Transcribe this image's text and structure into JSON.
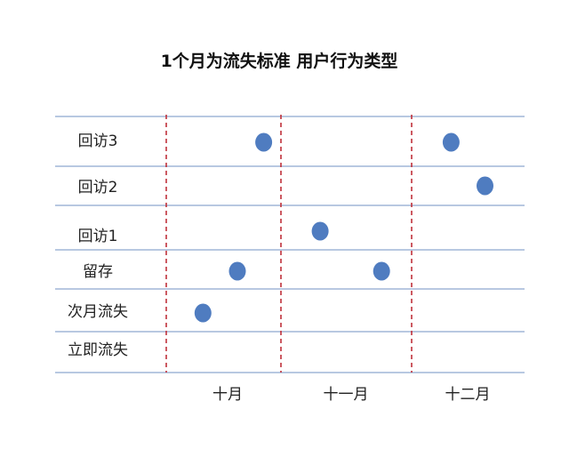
{
  "chart_data": {
    "type": "scatter",
    "title": "1个月为流失标准 用户行为类型",
    "categories": [
      "回访3",
      "回访2",
      "回访1",
      "留存",
      "次月流失",
      "立即流失"
    ],
    "months": [
      "十月",
      "十一月",
      "十二月"
    ],
    "points": [
      {
        "category": "回访3",
        "month": "十月",
        "position": 0.85
      },
      {
        "category": "回访3",
        "month": "十二月",
        "position": 0.35
      },
      {
        "category": "回访2",
        "month": "十二月",
        "position": 0.65
      },
      {
        "category": "回访1",
        "month": "十一月",
        "position": 0.3
      },
      {
        "category": "留存",
        "month": "十月",
        "position": 0.62
      },
      {
        "category": "留存",
        "month": "十一月",
        "position": 0.77
      },
      {
        "category": "次月流失",
        "month": "十月",
        "position": 0.32
      }
    ],
    "grid": true,
    "colors": {
      "point": "#4F7CC0",
      "grid": "#8DA8CF",
      "divider": "#C0303A"
    }
  }
}
